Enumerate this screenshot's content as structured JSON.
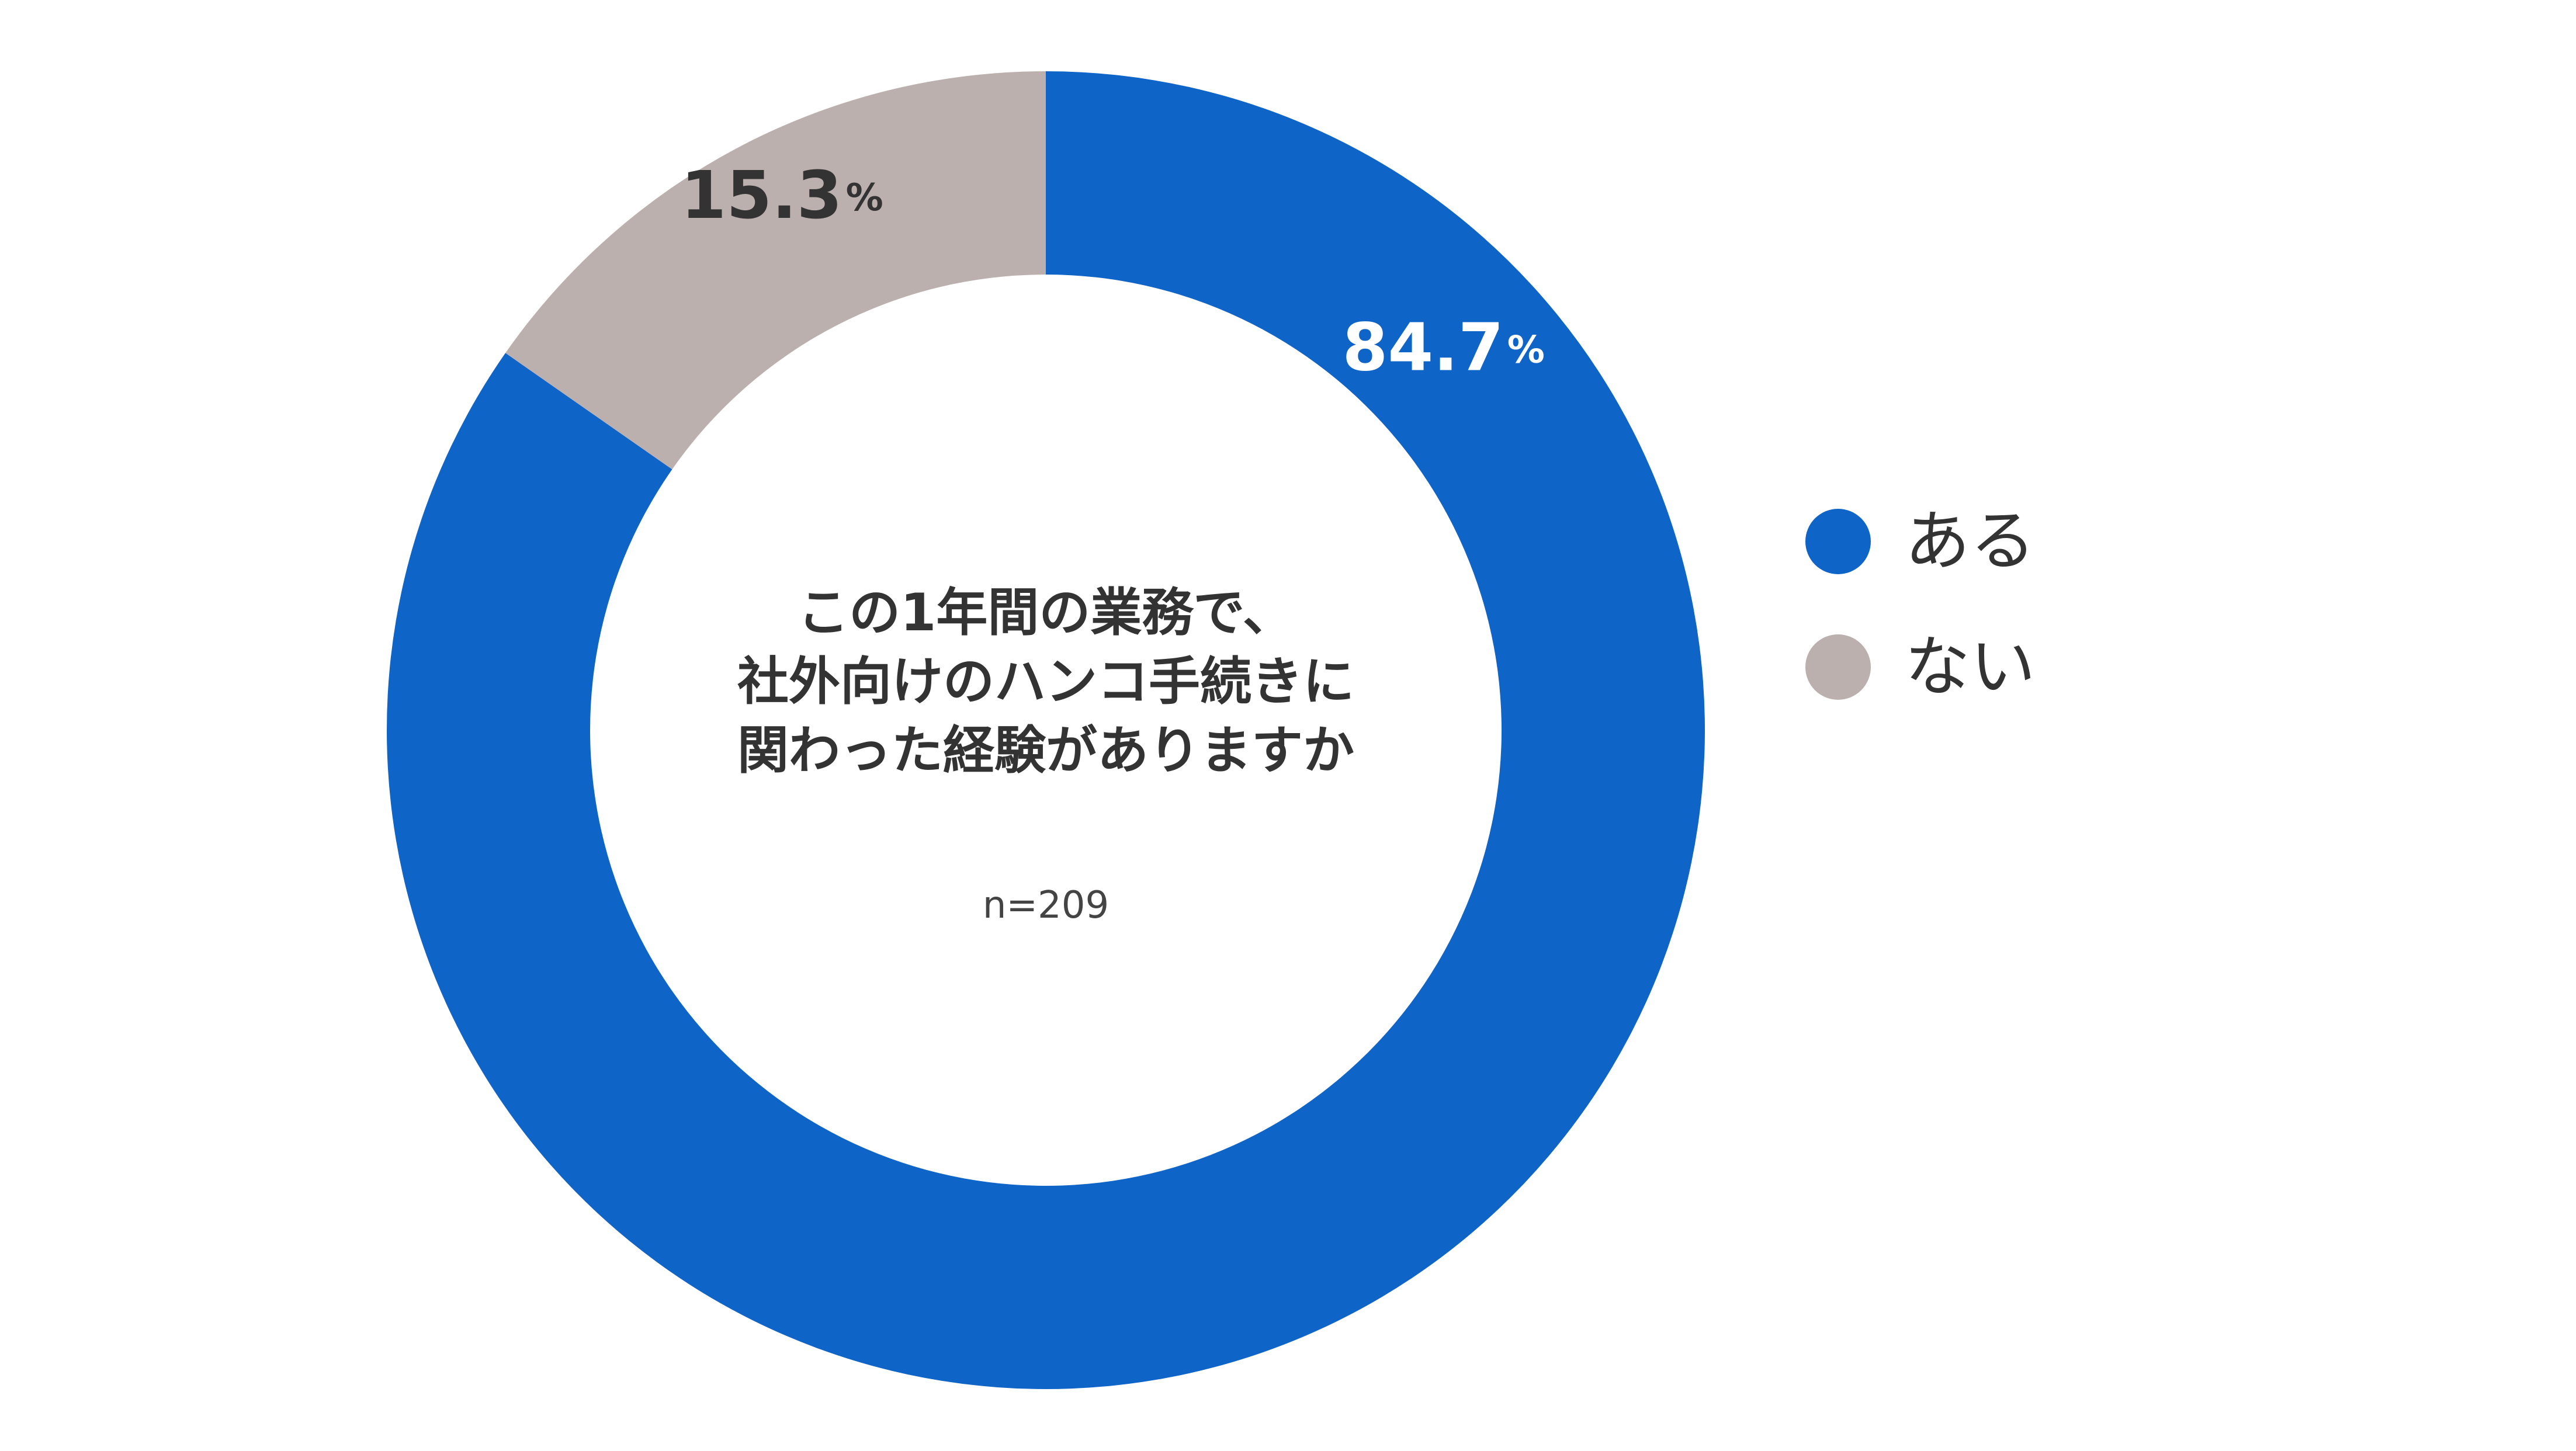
{
  "chart_data": {
    "type": "pie",
    "donut": true,
    "series": [
      {
        "name": "ある",
        "value": 84.7,
        "label": "84.7",
        "unit": "%",
        "color": "#0f64c8"
      },
      {
        "name": "ない",
        "value": 15.3,
        "label": "15.3",
        "unit": "%",
        "color": "#bbb0ae"
      }
    ],
    "center_title": [
      "この1年間の業務で、",
      "社外向けのハンコ手続きに",
      "関わった経験がありますか"
    ],
    "sample_size": "n=209",
    "legend_placement": "right",
    "label_colors": {
      "ある": "#ffffff",
      "ない": "#333333"
    }
  }
}
